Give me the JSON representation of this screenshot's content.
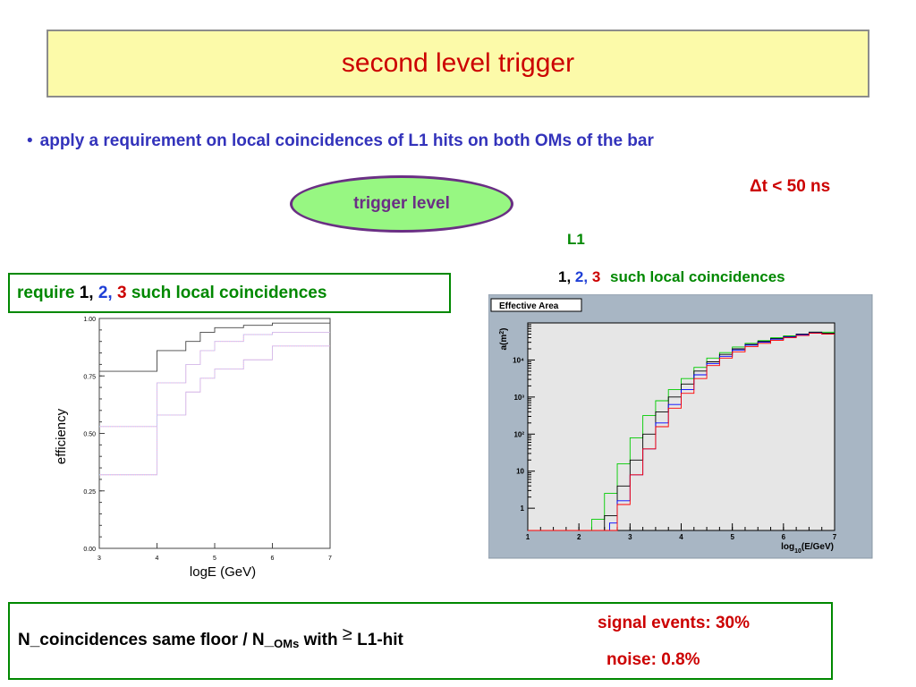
{
  "title": "second level trigger",
  "bullet": "apply a requirement on local coincidences of L1 hits on both OMs of the bar",
  "dt_condition": "Δt < 50 ns",
  "trigger_level": "trigger level",
  "l1_label": "L1",
  "right_coinc": {
    "n1": "1,",
    "n2": "2,",
    "n3": "3",
    "text": "such local coincidences"
  },
  "require": {
    "prefix": "require",
    "n1": "1,",
    "n2": "2,",
    "n3": "3",
    "text": "such local coincidences"
  },
  "formula": {
    "part1": "N_coincidences same floor  /  N_",
    "sub": "OMs",
    "part2": " with",
    "symbol": "≥",
    "part3": "  L1-hit"
  },
  "signal": "signal events: 30%",
  "noise": "noise: 0.8%",
  "colors": {
    "title": "#cc0000",
    "bullet": "#3333bb",
    "green": "#008800",
    "blue": "#1f3fd6",
    "red": "#cc0000",
    "ellipse_fill": "#97f782",
    "ellipse_border": "#6a2f84",
    "title_bg": "#fcfaa9"
  },
  "chart_data": [
    {
      "type": "line",
      "title": "",
      "xlabel": "logE (GeV)",
      "ylabel": "efficiency",
      "xlim": [
        3,
        7
      ],
      "ylim": [
        0,
        1
      ],
      "x_ticks": [
        "3",
        "4",
        "5",
        "6",
        "7"
      ],
      "y_ticks": [
        "0.00",
        "0.25",
        "0.50",
        "0.75",
        "1.00"
      ],
      "step": true,
      "series": [
        {
          "color": "#444444",
          "x": [
            3,
            4,
            4.5,
            4.75,
            5,
            5.5,
            6,
            7
          ],
          "y": [
            0.77,
            0.86,
            0.9,
            0.94,
            0.96,
            0.97,
            0.98,
            0.98
          ]
        },
        {
          "color": "#ff9fd4",
          "x": [
            3,
            4,
            4.5,
            4.75,
            5,
            5.5,
            6,
            7
          ],
          "y": [
            0.53,
            0.72,
            0.8,
            0.86,
            0.9,
            0.93,
            0.94,
            0.95
          ]
        },
        {
          "color": "#ff9fd4",
          "x": [
            3,
            4,
            4.5,
            4.75,
            5,
            5.5,
            6,
            7
          ],
          "y": [
            0.32,
            0.58,
            0.68,
            0.74,
            0.78,
            0.82,
            0.88,
            0.9
          ]
        },
        {
          "color": "#a8d8ff",
          "x": [
            3,
            4,
            4.5,
            4.75,
            5,
            5.5,
            6,
            7
          ],
          "y": [
            0.53,
            0.72,
            0.8,
            0.86,
            0.9,
            0.93,
            0.94,
            0.95
          ]
        },
        {
          "color": "#a8d8ff",
          "x": [
            3,
            4,
            4.5,
            4.75,
            5,
            5.5,
            6,
            7
          ],
          "y": [
            0.32,
            0.58,
            0.68,
            0.74,
            0.78,
            0.82,
            0.88,
            0.9
          ]
        }
      ]
    },
    {
      "type": "line",
      "title": "Effective Area",
      "xlabel": "log10(E/GeV)",
      "ylabel": "a(m2)",
      "xlim": [
        1,
        7
      ],
      "ylim_log10": [
        -0.6,
        5
      ],
      "x_ticks": [
        "1",
        "2",
        "3",
        "4",
        "5",
        "6",
        "7"
      ],
      "y_ticks": [
        {
          "v": 0,
          "label": "1"
        },
        {
          "v": 1,
          "label": "10"
        },
        {
          "v": 2,
          "label": "10²"
        },
        {
          "v": 3,
          "label": "10³"
        },
        {
          "v": 4,
          "label": "10⁴"
        }
      ],
      "step": true,
      "log_y": true,
      "series": [
        {
          "color": "#00cc00",
          "x": [
            1,
            2.25,
            2.5,
            2.75,
            3,
            3.25,
            3.5,
            3.75,
            4,
            4.25,
            4.5,
            4.75,
            5,
            5.25,
            5.5,
            5.75,
            6,
            6.25,
            6.5,
            6.75,
            7
          ],
          "y": [
            -0.6,
            -0.3,
            0.4,
            1.2,
            1.9,
            2.5,
            2.9,
            3.2,
            3.5,
            3.8,
            4.05,
            4.2,
            4.35,
            4.45,
            4.52,
            4.6,
            4.65,
            4.7,
            4.75,
            4.75,
            4.75
          ]
        },
        {
          "color": "#000000",
          "x": [
            1,
            2.5,
            2.75,
            3,
            3.25,
            3.5,
            3.75,
            4,
            4.25,
            4.5,
            4.75,
            5,
            5.25,
            5.5,
            5.75,
            6,
            6.25,
            6.5,
            6.75,
            7
          ],
          "y": [
            -0.6,
            -0.2,
            0.6,
            1.3,
            2.0,
            2.6,
            3.0,
            3.35,
            3.7,
            3.95,
            4.15,
            4.3,
            4.42,
            4.5,
            4.58,
            4.63,
            4.7,
            4.75,
            4.72,
            4.72
          ]
        },
        {
          "color": "#0000ff",
          "x": [
            1,
            2.6,
            2.75,
            3,
            3.25,
            3.5,
            3.75,
            4,
            4.25,
            4.5,
            4.75,
            5,
            5.25,
            5.5,
            5.75,
            6,
            6.25,
            6.5,
            6.75,
            7
          ],
          "y": [
            -0.6,
            -0.4,
            0.2,
            0.9,
            1.6,
            2.3,
            2.8,
            3.2,
            3.6,
            3.9,
            4.1,
            4.27,
            4.4,
            4.48,
            4.56,
            4.62,
            4.68,
            4.73,
            4.7,
            4.7
          ]
        },
        {
          "color": "#ff0000",
          "x": [
            1,
            2.75,
            3,
            3.25,
            3.5,
            3.75,
            4,
            4.25,
            4.5,
            4.75,
            5,
            5.25,
            5.5,
            5.75,
            6,
            6.25,
            6.5,
            6.75,
            7
          ],
          "y": [
            -0.6,
            0.1,
            0.9,
            1.6,
            2.2,
            2.7,
            3.1,
            3.5,
            3.85,
            4.05,
            4.22,
            4.36,
            4.45,
            4.53,
            4.6,
            4.66,
            4.72,
            4.7,
            4.7
          ]
        }
      ]
    }
  ]
}
